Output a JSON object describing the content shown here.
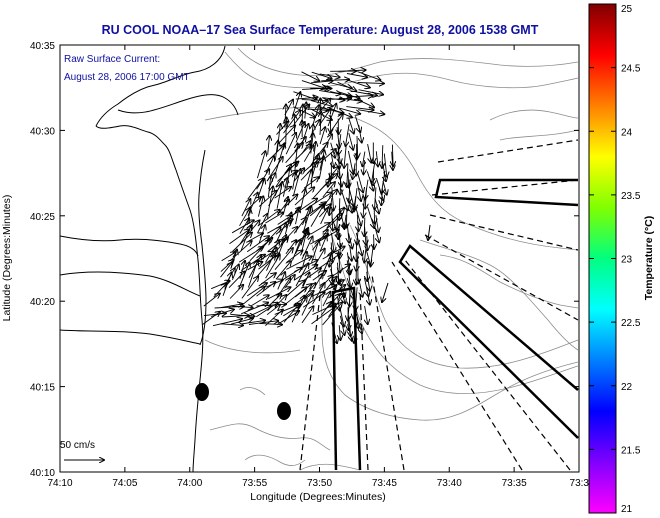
{
  "title": "RU COOL  NOAA–17  Sea Surface Temperature:  August 28, 2006 1538 GMT",
  "legend_text": {
    "line1": "Raw Surface Current:",
    "line2": "August 28, 2006 17:00 GMT"
  },
  "scale_label": "50 cm/s",
  "axes": {
    "xlabel": "Longitude (Degrees:Minutes)",
    "ylabel": "Latitude (Degrees:Minutes)",
    "xticks": [
      "74:10",
      "74:05",
      "74:00",
      "73:55",
      "73:50",
      "73:45",
      "73:40",
      "73:35",
      "73:3"
    ],
    "yticks": [
      "40:35",
      "40:30",
      "40:25",
      "40:20",
      "40:15",
      "40:10"
    ]
  },
  "colorbar": {
    "label": "Temperature (°C)",
    "ticks": [
      "25",
      "24.5",
      "24",
      "23.5",
      "23",
      "22.5",
      "22",
      "21.5",
      "21"
    ],
    "min": 21,
    "max": 25,
    "colors": [
      "#ff00ff",
      "#8000ff",
      "#0000ff",
      "#0080ff",
      "#00ffff",
      "#00ff80",
      "#80ff00",
      "#ffff00",
      "#ff8000",
      "#ff0000",
      "#800000"
    ]
  },
  "colors": {
    "title": "#1010a0",
    "annotation": "#1010a0",
    "axes": "#000000",
    "contours": "#888888"
  }
}
